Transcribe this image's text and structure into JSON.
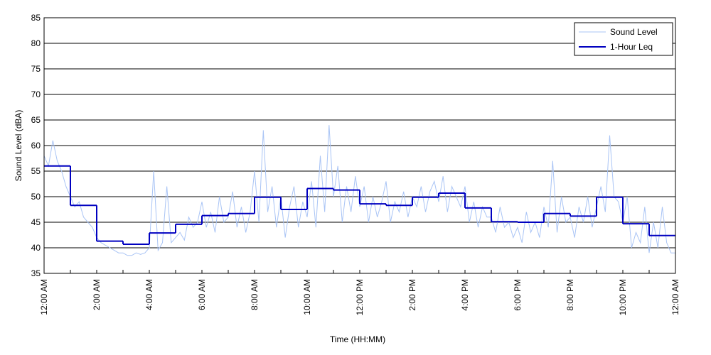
{
  "chart_data": {
    "type": "line",
    "xlabel": "Time (HH:MM)",
    "ylabel": "Sound Level (dBA)",
    "xlim": [
      0,
      1440
    ],
    "ylim": [
      35,
      85
    ],
    "yticks": [
      35,
      40,
      45,
      50,
      55,
      60,
      65,
      70,
      75,
      80,
      85
    ],
    "xticks": [
      {
        "value": 0,
        "label": "12:00 AM"
      },
      {
        "value": 120,
        "label": "2:00 AM"
      },
      {
        "value": 240,
        "label": "4:00 AM"
      },
      {
        "value": 360,
        "label": "6:00 AM"
      },
      {
        "value": 480,
        "label": "8:00 AM"
      },
      {
        "value": 600,
        "label": "10:00 AM"
      },
      {
        "value": 720,
        "label": "12:00 PM"
      },
      {
        "value": 840,
        "label": "2:00 PM"
      },
      {
        "value": 960,
        "label": "4:00 PM"
      },
      {
        "value": 1080,
        "label": "6:00 PM"
      },
      {
        "value": 1200,
        "label": "8:00 PM"
      },
      {
        "value": 1320,
        "label": "10:00 PM"
      },
      {
        "value": 1440,
        "label": "12:00 AM"
      }
    ],
    "xminorticks": [
      60,
      180,
      300,
      420,
      540,
      660,
      780,
      900,
      1020,
      1140,
      1260,
      1380
    ],
    "grid": true,
    "legend": "top-right",
    "series": [
      {
        "name": "Sound Level",
        "color": "#a9c4f5",
        "style": "line",
        "x": [
          0,
          10,
          20,
          30,
          40,
          50,
          60,
          70,
          80,
          90,
          100,
          110,
          120,
          130,
          140,
          150,
          160,
          170,
          180,
          190,
          200,
          210,
          220,
          230,
          240,
          250,
          260,
          270,
          280,
          290,
          300,
          310,
          320,
          330,
          340,
          350,
          360,
          370,
          380,
          390,
          400,
          410,
          420,
          430,
          440,
          450,
          460,
          470,
          480,
          490,
          500,
          510,
          520,
          530,
          540,
          550,
          560,
          570,
          580,
          590,
          600,
          610,
          620,
          630,
          640,
          650,
          660,
          670,
          680,
          690,
          700,
          710,
          720,
          730,
          740,
          750,
          760,
          770,
          780,
          790,
          800,
          810,
          820,
          830,
          840,
          850,
          860,
          870,
          880,
          890,
          900,
          910,
          920,
          930,
          940,
          950,
          960,
          970,
          980,
          990,
          1000,
          1010,
          1020,
          1030,
          1040,
          1050,
          1060,
          1070,
          1080,
          1090,
          1100,
          1110,
          1120,
          1130,
          1140,
          1150,
          1160,
          1170,
          1180,
          1190,
          1200,
          1210,
          1220,
          1230,
          1240,
          1250,
          1260,
          1270,
          1280,
          1290,
          1300,
          1310,
          1320,
          1330,
          1340,
          1350,
          1360,
          1370,
          1380,
          1390,
          1400,
          1410,
          1420,
          1430,
          1440
        ],
        "values": [
          58,
          56,
          61,
          57,
          55,
          52,
          50,
          48,
          49,
          46,
          45,
          44,
          42,
          41,
          40.5,
          40,
          39.5,
          39,
          39,
          38.5,
          38.5,
          39,
          38.7,
          39,
          40,
          55,
          39.5,
          41,
          52,
          41,
          42,
          43,
          41.5,
          46,
          44,
          45,
          49,
          44,
          47,
          43,
          50,
          45,
          46,
          51,
          44,
          48,
          43,
          47,
          55,
          45,
          63,
          47,
          52,
          44,
          50,
          42,
          48,
          52,
          44,
          49,
          46,
          53,
          44,
          58,
          47,
          64,
          50,
          56,
          45,
          52,
          47,
          54,
          48,
          52,
          45,
          50,
          46,
          49,
          53,
          45,
          49,
          47,
          51,
          46,
          50,
          48,
          52,
          47,
          51,
          53,
          49,
          54,
          47,
          52,
          50,
          48,
          52,
          45,
          49,
          44,
          48,
          46,
          46,
          43,
          48,
          44,
          45,
          42,
          44,
          41,
          47,
          43,
          45,
          42,
          48,
          44,
          57,
          43,
          50,
          45,
          46,
          42,
          48,
          45,
          50,
          44,
          48,
          52,
          47,
          62,
          50,
          49,
          45,
          50,
          40,
          43,
          41,
          48,
          39,
          45,
          40,
          48,
          41,
          39,
          39
        ]
      },
      {
        "name": "1-Hour Leq",
        "color": "#0000c0",
        "style": "step",
        "x": [
          0,
          60,
          120,
          180,
          240,
          300,
          360,
          420,
          480,
          540,
          600,
          660,
          720,
          780,
          840,
          900,
          960,
          1020,
          1080,
          1140,
          1200,
          1260,
          1320,
          1380
        ],
        "values": [
          56,
          48.3,
          41.3,
          40.7,
          42.9,
          44.6,
          46.3,
          46.7,
          49.9,
          47.5,
          51.6,
          51.3,
          48.6,
          48.3,
          49.9,
          50.7,
          47.8,
          45.1,
          45,
          46.7,
          46.2,
          49.9,
          44.7,
          42.4
        ]
      }
    ]
  }
}
